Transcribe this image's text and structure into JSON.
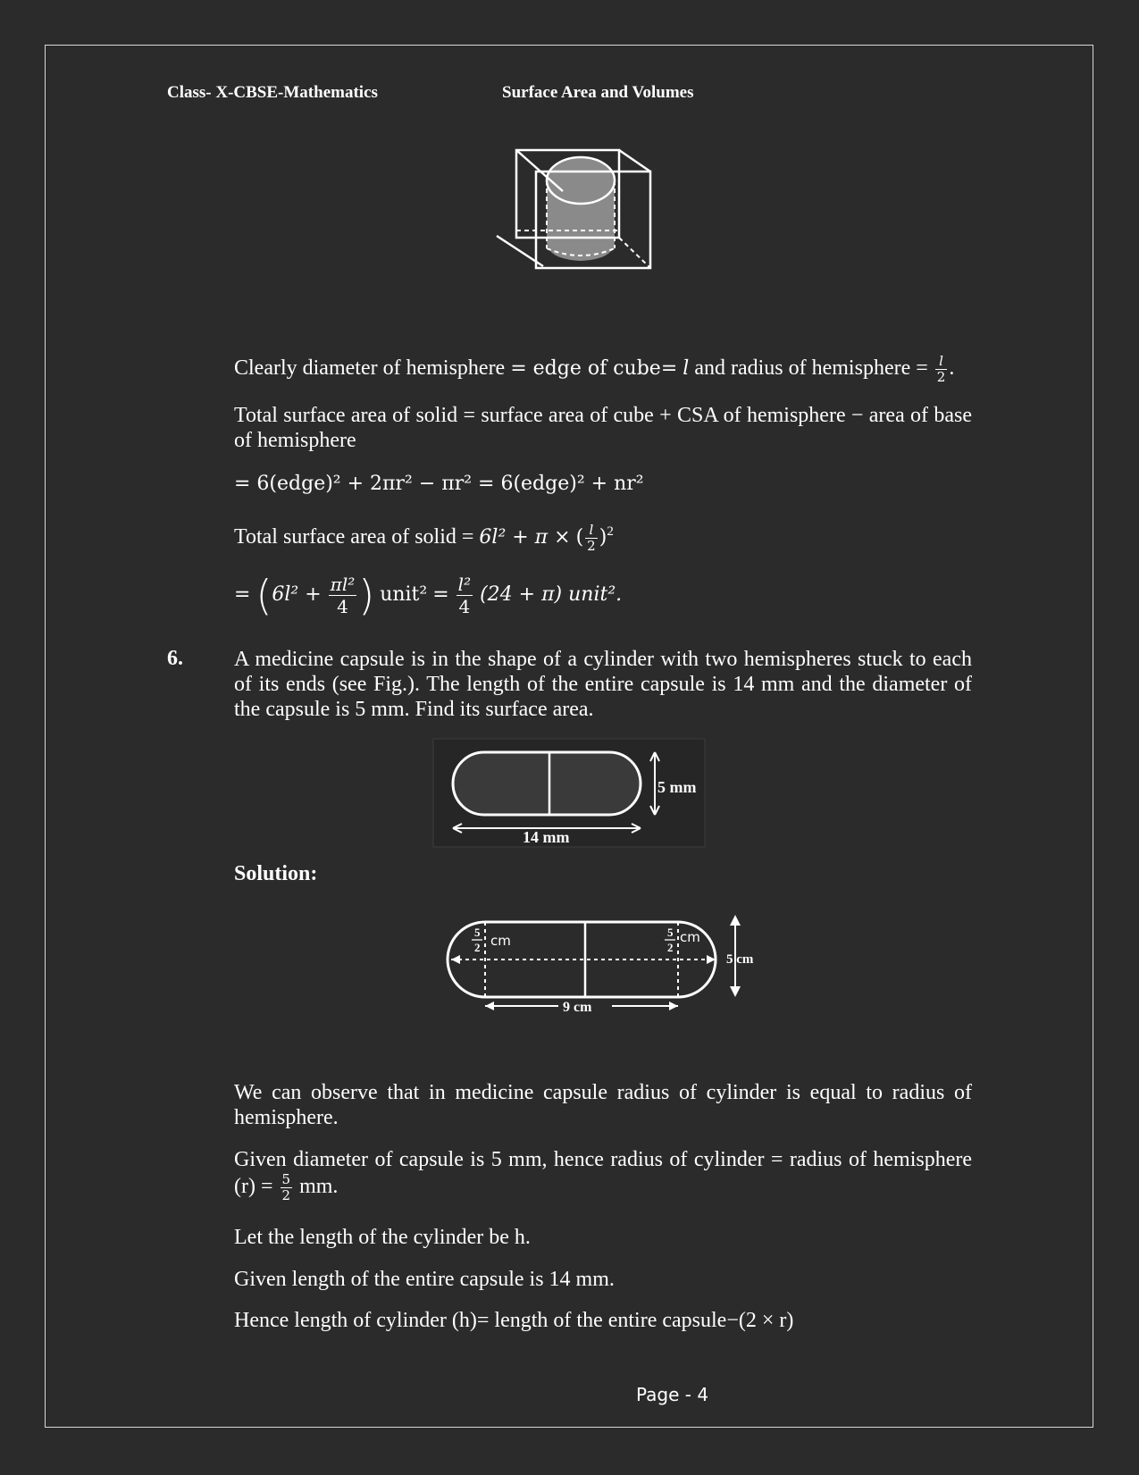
{
  "header": {
    "left": "Class- X-CBSE-Mathematics",
    "right": "Surface Area and Volumes"
  },
  "lines": {
    "l1a": "Clearly diameter of hemisphere",
    "l1b": "= edge of cube=",
    "l1c": "l",
    "l1d": "and radius of hemisphere =",
    "l1_num": "l",
    "l1_den": "2",
    "l2": "Total surface area of solid = surface area of cube + CSA of hemisphere − area of base of hemisphere",
    "l3": "= 6(edge)² + 2πr² − πr² = 6(edge)² + nr²",
    "l4a": "Total surface area of solid =",
    "l4b": "6l² + π ×",
    "l4_num": "l",
    "l4_den": "2",
    "l5a": "6l² +",
    "l5_num": "πl²",
    "l5_den": "4",
    "l5b": "unit²",
    "l5_num2": "l²",
    "l5_den2": "4",
    "l5c": "(24 + π) unit²."
  },
  "question": {
    "number": "6.",
    "text": "A medicine capsule is in the shape of a cylinder with two hemispheres stuck to each of its ends (see Fig.). The length of the entire capsule is 14 mm and the diameter of the capsule is 5 mm. Find its surface area."
  },
  "fig1": {
    "length_label": "14 mm",
    "diameter_label": "5 mm"
  },
  "solution_label": "Solution:",
  "fig2": {
    "radius_num": "5",
    "radius_den": "2",
    "radius_unit": "cm",
    "length_label": "9 cm",
    "diameter_label": "5 cm"
  },
  "paras": {
    "p1": "We can observe that in medicine capsule radius of cylinder is equal to radius of hemisphere.",
    "p2": "Given diameter of capsule is 5 mm, hence radius of cylinder = radius of hemisphere (r) =",
    "p2_num": "5",
    "p2_den": "2",
    "p2_end": "mm.",
    "p3": "Let the length of the cylinder be h.",
    "p4": "Given length of the entire capsule is 14 mm.",
    "p5": "Hence length of cylinder (h)= length of the entire capsule−(2 × r)"
  },
  "page_number": "Page - 4"
}
